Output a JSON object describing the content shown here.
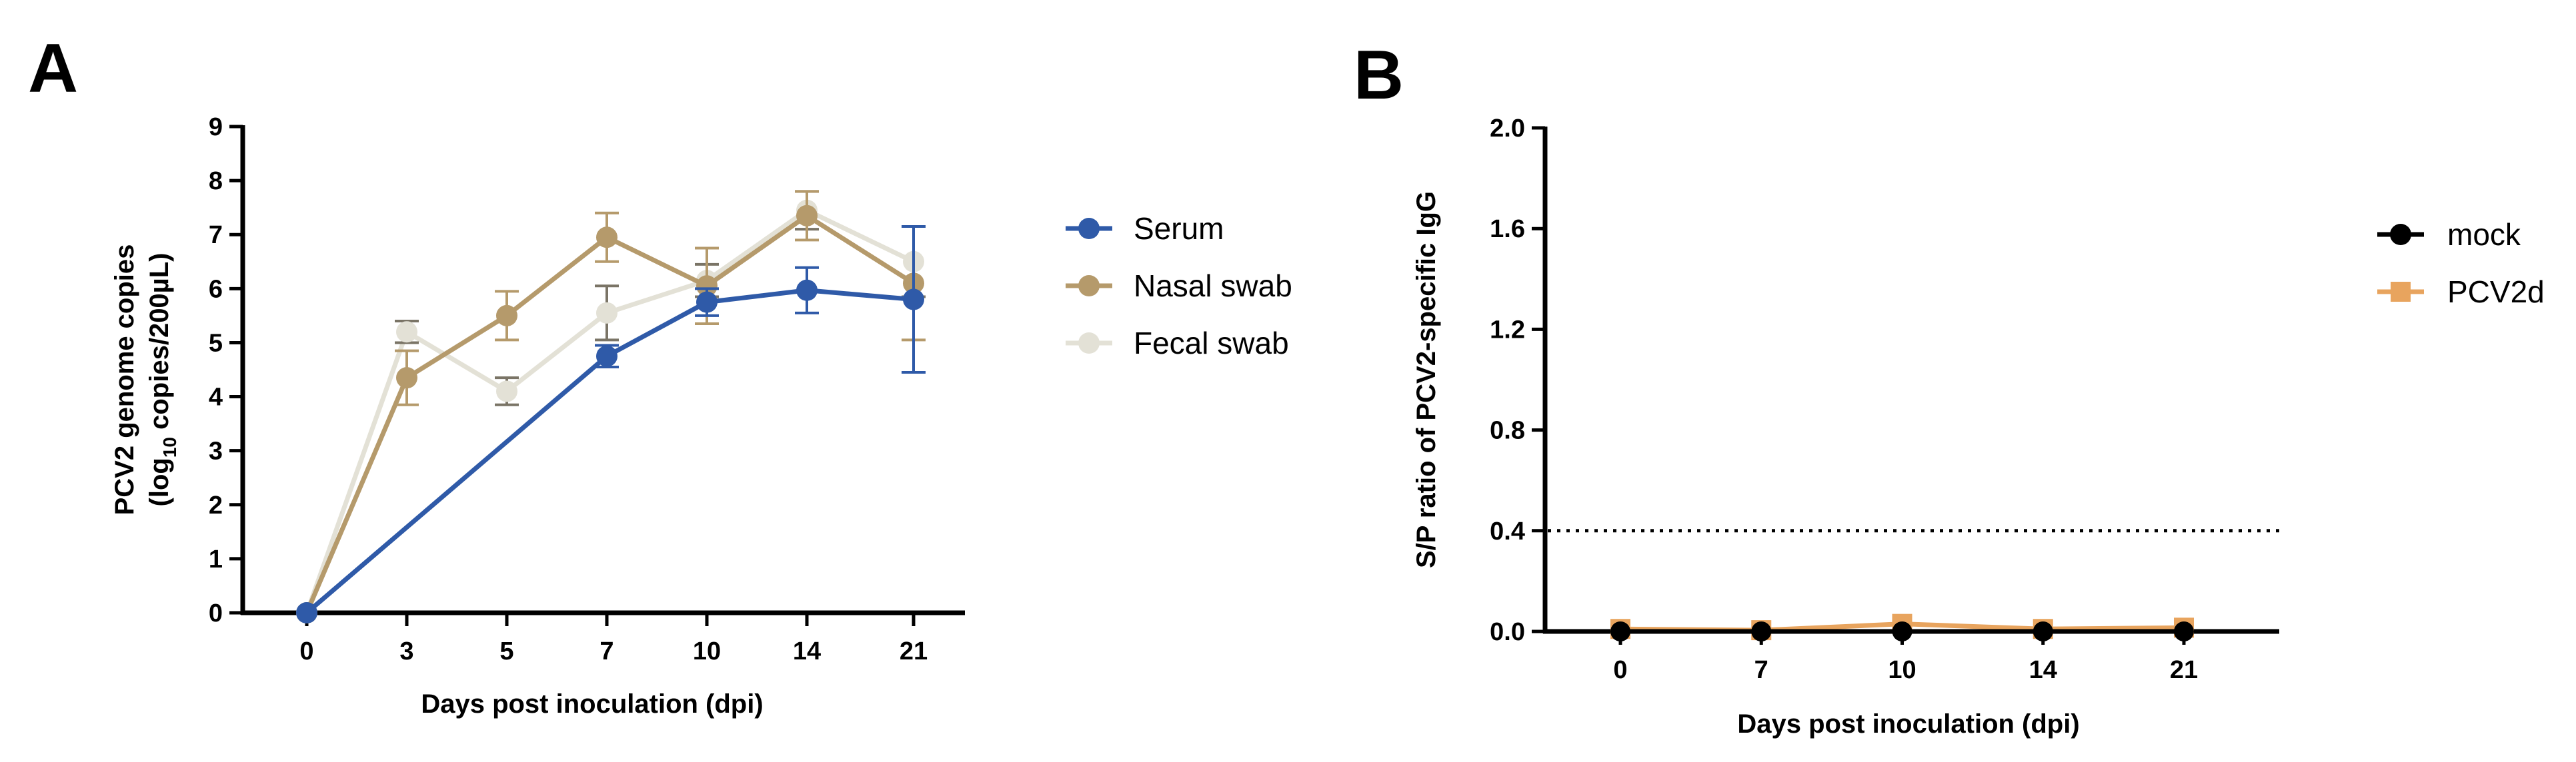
{
  "panels": [
    {
      "letter": "A"
    },
    {
      "letter": "B"
    }
  ],
  "chart_data": [
    {
      "type": "line",
      "panel": "A",
      "title": "",
      "xlabel": "Days post inoculation (dpi)",
      "ylabel_line1": "PCV2 genome copies",
      "ylabel_line2_prefix": "(log",
      "ylabel_line2_sub": "10",
      "ylabel_line2_suffix": " copies/200µL)",
      "x_categories": [
        "0",
        "3",
        "5",
        "7",
        "10",
        "14",
        "21"
      ],
      "x_positions": [
        0,
        3,
        5,
        7,
        10,
        14,
        21
      ],
      "ylim": [
        0,
        9
      ],
      "yticks": [
        "0",
        "1",
        "2",
        "3",
        "4",
        "5",
        "6",
        "7",
        "8",
        "9"
      ],
      "legend_position": "right",
      "series": [
        {
          "name": "Fecal swab",
          "color": "#e3e1d6",
          "marker": "circle",
          "x": [
            0,
            3,
            5,
            7,
            10,
            14,
            21
          ],
          "values": [
            0,
            5.2,
            4.1,
            5.55,
            6.15,
            7.45,
            6.5
          ],
          "errors": [
            0,
            0.2,
            0.25,
            0.5,
            0.3,
            0.35,
            0.65
          ]
        },
        {
          "name": "Nasal swab",
          "color": "#b59a6b",
          "marker": "circle",
          "x": [
            0,
            3,
            5,
            7,
            10,
            14,
            21
          ],
          "values": [
            0,
            4.35,
            5.5,
            6.95,
            6.05,
            7.35,
            6.1
          ],
          "errors": [
            0,
            0.5,
            0.45,
            0.45,
            0.7,
            0.45,
            1.05
          ]
        },
        {
          "name": "Serum",
          "color": "#2f5aa8",
          "marker": "circle",
          "x": [
            0,
            7,
            10,
            14,
            21
          ],
          "values": [
            0,
            4.75,
            5.75,
            5.97,
            5.8
          ],
          "errors": [
            0,
            0.2,
            0.25,
            0.42,
            1.35
          ]
        }
      ],
      "legend_order": [
        "Serum",
        "Nasal swab",
        "Fecal swab"
      ]
    },
    {
      "type": "line",
      "panel": "B",
      "title": "",
      "xlabel": "Days post inoculation (dpi)",
      "ylabel": "S/P ratio of PCV2-specific IgG",
      "x_categories": [
        "0",
        "7",
        "10",
        "14",
        "21"
      ],
      "ylim": [
        0,
        2.0
      ],
      "yticks": [
        "0.0",
        "0.4",
        "0.8",
        "1.2",
        "1.6",
        "2.0"
      ],
      "cutoff": 0.4,
      "legend_position": "right",
      "series": [
        {
          "name": "PCV2d",
          "color": "#e8a45e",
          "marker": "square",
          "values": [
            0.01,
            0.005,
            0.03,
            0.01,
            0.015
          ]
        },
        {
          "name": "mock",
          "color": "#000000",
          "marker": "circle",
          "values": [
            0.0,
            0.0,
            0.0,
            0.0,
            0.0
          ]
        }
      ],
      "legend_order": [
        "mock",
        "PCV2d"
      ]
    }
  ]
}
